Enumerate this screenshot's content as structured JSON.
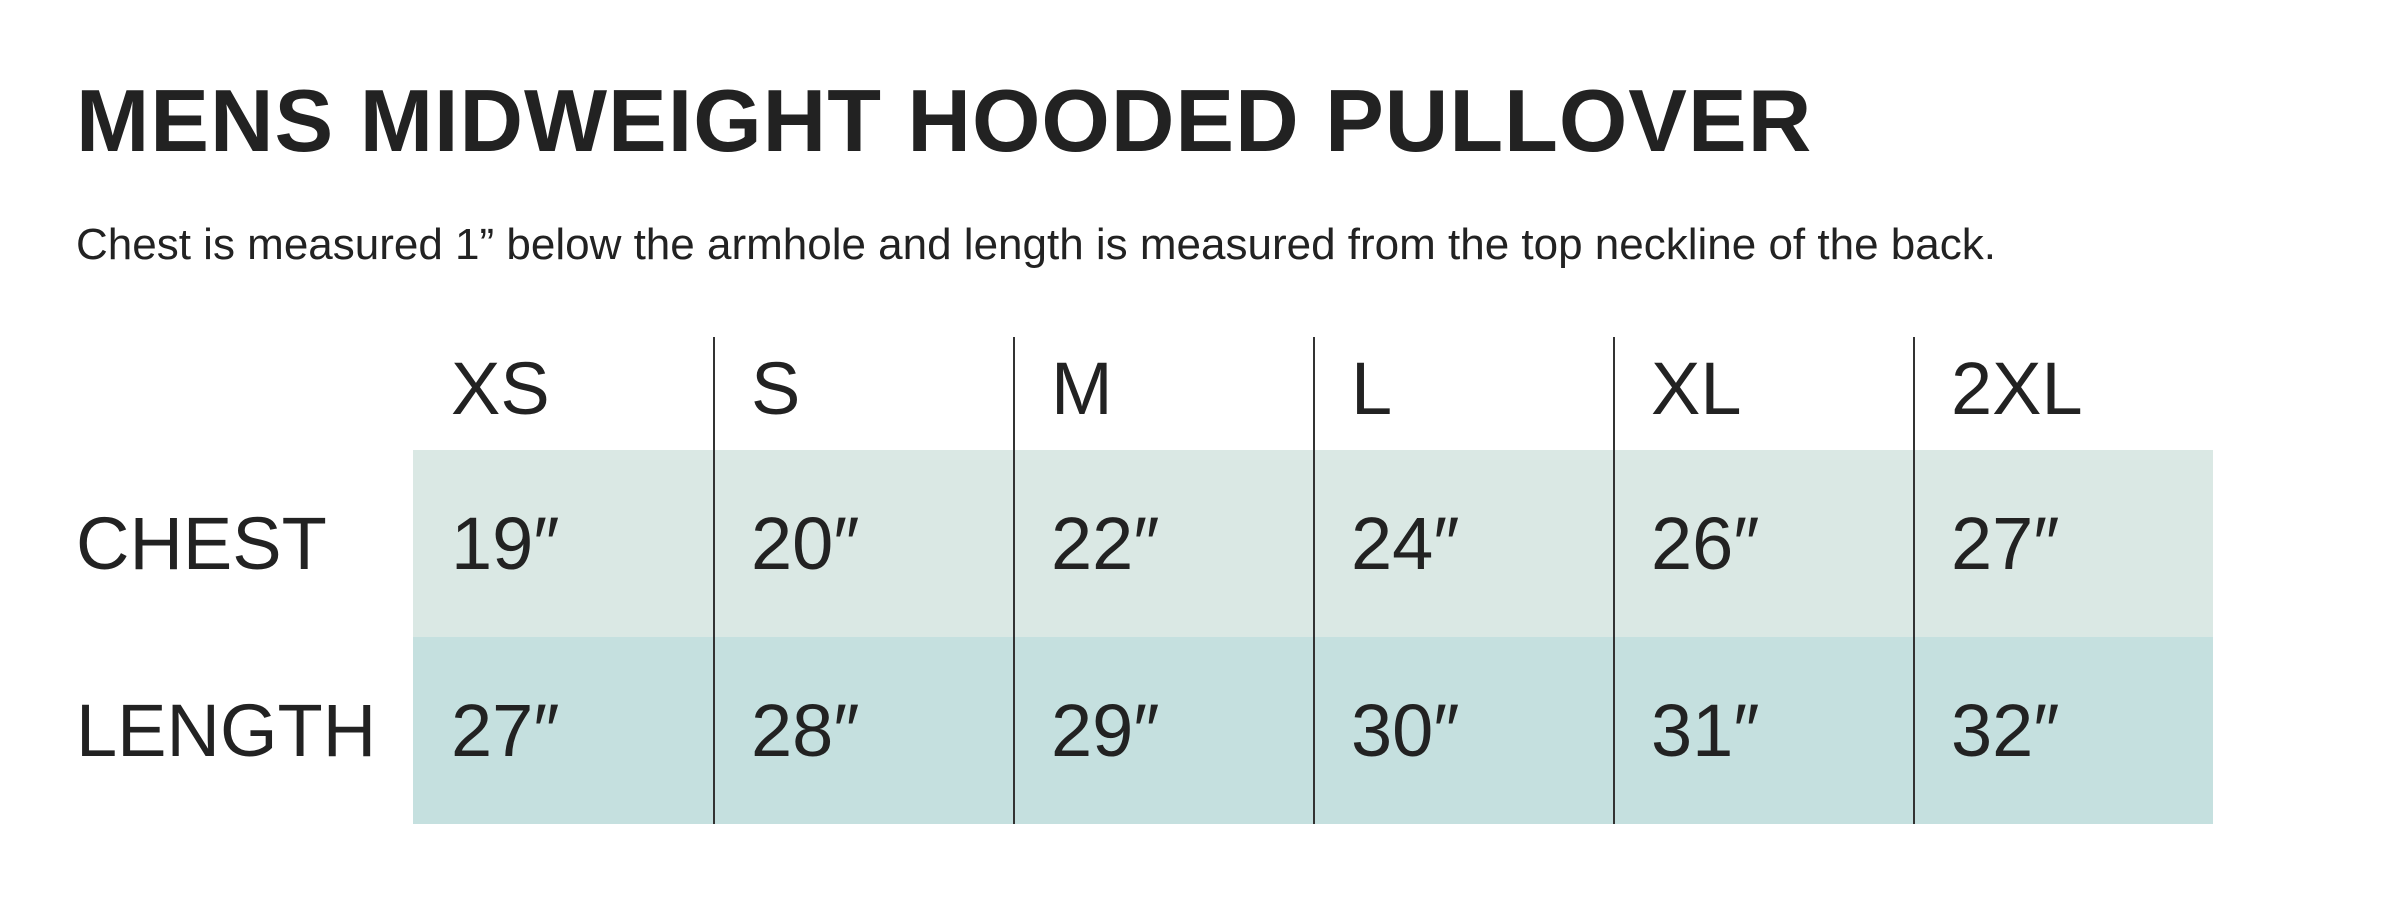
{
  "title": "MENS MIDWEIGHT HOODED PULLOVER",
  "subtitle": "Chest is measured 1” below the armhole and length is measured from the top neckline of the back.",
  "table": {
    "sizes": [
      "XS",
      "S",
      "M",
      "L",
      "XL",
      "2XL"
    ],
    "rows": [
      {
        "label": "CHEST",
        "values": [
          "19″",
          "20″",
          "22″",
          "24″",
          "26″",
          "27″"
        ],
        "color": "#dae8e4"
      },
      {
        "label": "LENGTH",
        "values": [
          "27″",
          "28″",
          "29″",
          "30″",
          "31″",
          "32″"
        ],
        "color": "#c5e0df"
      }
    ]
  }
}
